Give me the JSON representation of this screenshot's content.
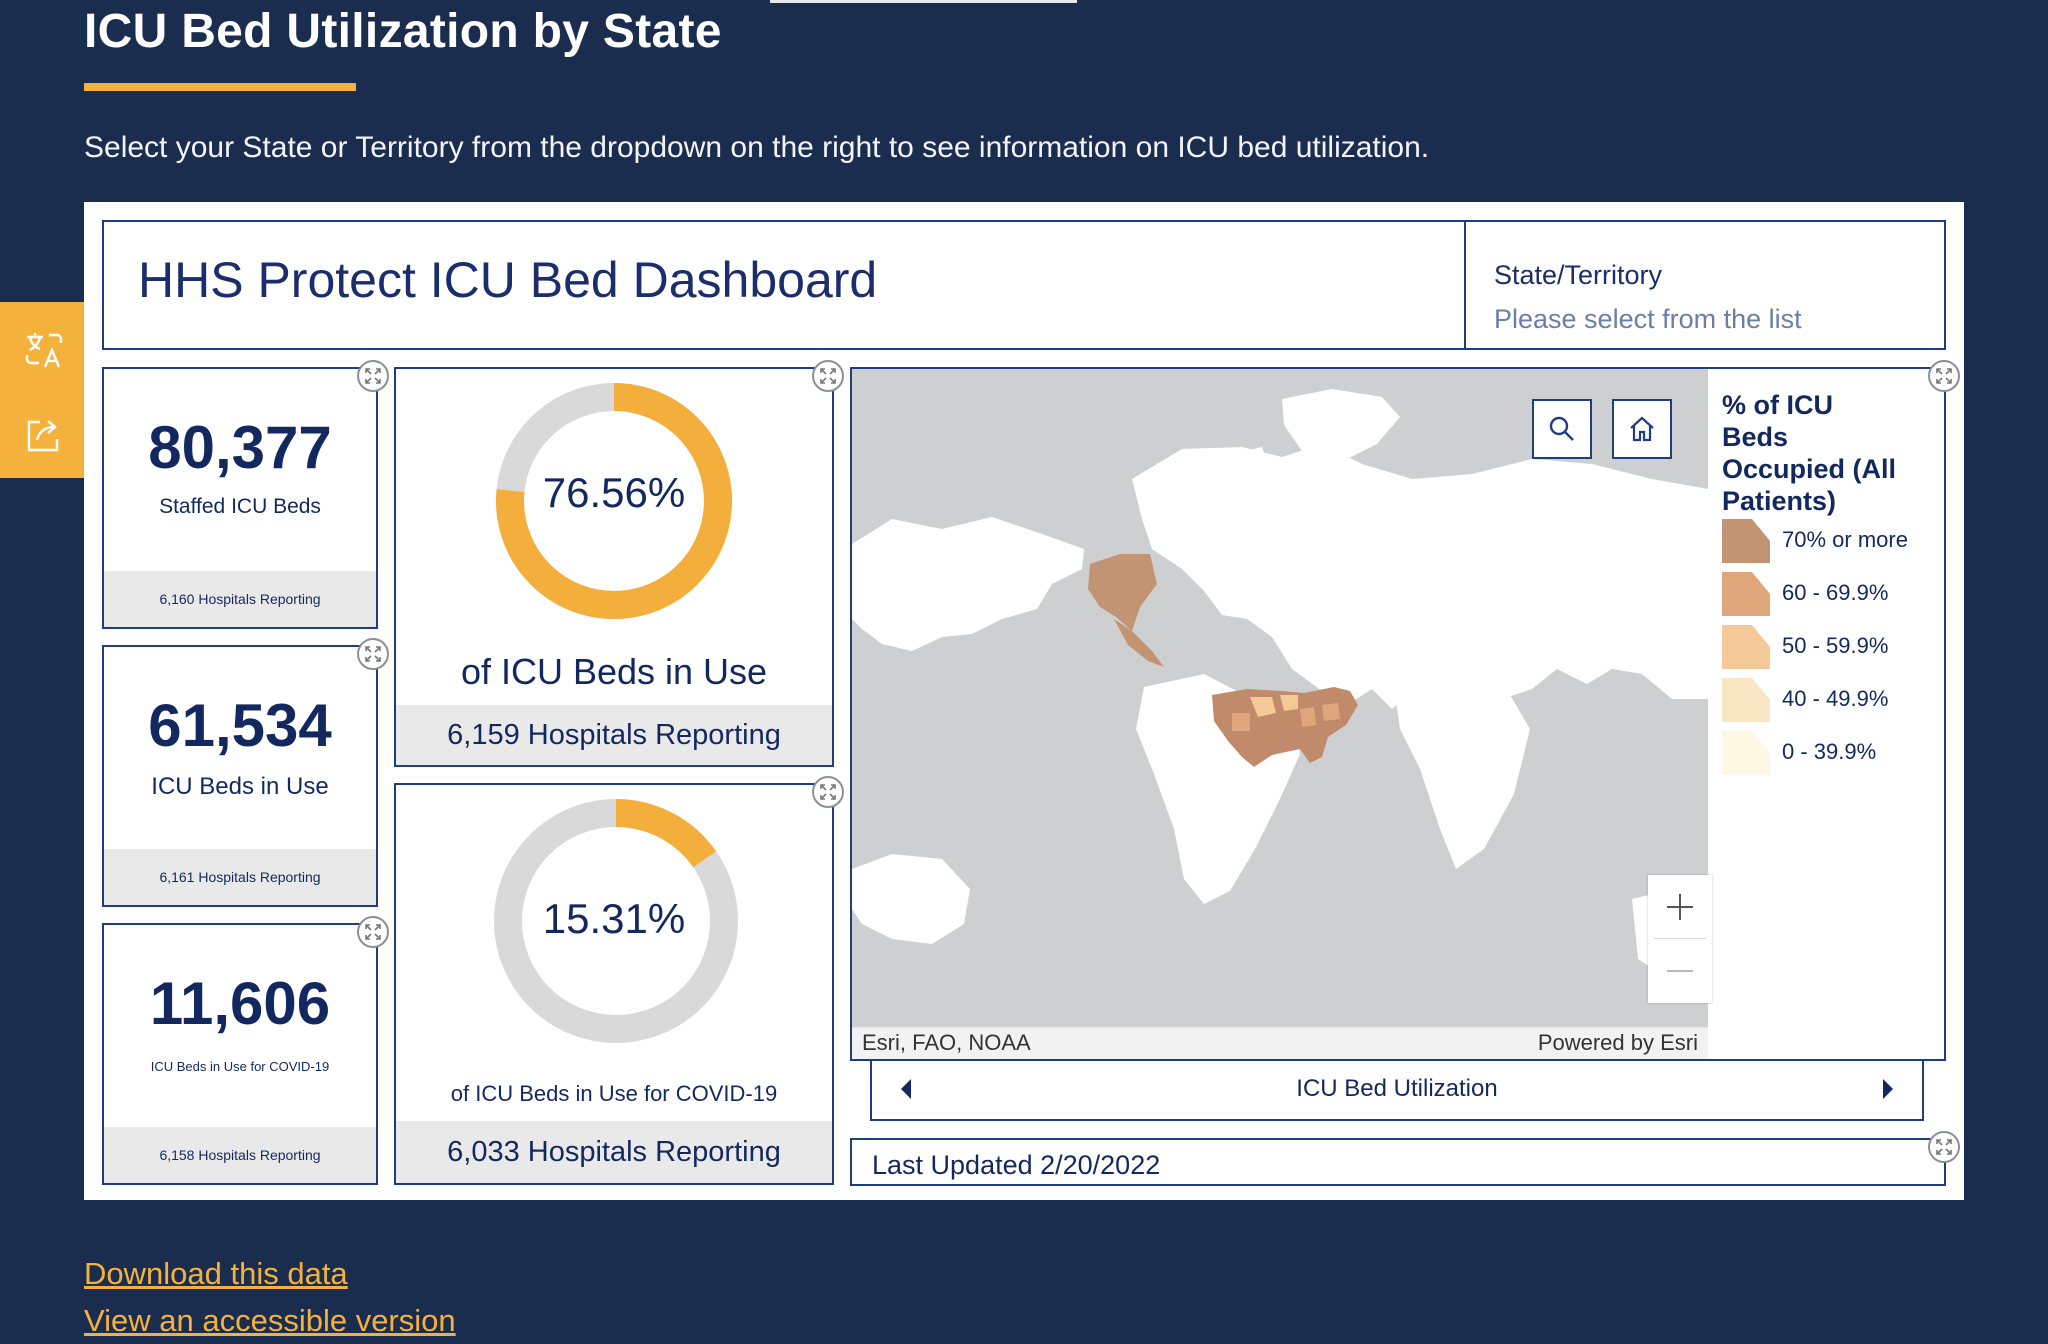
{
  "page": {
    "title": "ICU Bed Utilization by State",
    "intro": "Select your State or Territory from the dropdown on the right to see information on ICU bed utilization."
  },
  "dashboard": {
    "title": "HHS Protect ICU Bed Dashboard",
    "state_selector": {
      "label": "State/Territory",
      "placeholder": "Please select from the list"
    },
    "kpis": [
      {
        "value": "80,377",
        "label": "Staffed ICU Beds",
        "footer": "6,160 Hospitals Reporting"
      },
      {
        "value": "61,534",
        "label": "ICU Beds in Use",
        "footer": "6,161 Hospitals Reporting"
      },
      {
        "value": "11,606",
        "label": "ICU Beds in Use for COVID-19",
        "footer": "6,158 Hospitals Reporting"
      }
    ],
    "donuts": [
      {
        "percent_text": "76.56%",
        "fraction": 0.7656,
        "caption": "of ICU Beds in Use",
        "footer": "6,159 Hospitals Reporting",
        "color": "#f4ae3c"
      },
      {
        "percent_text": "15.31%",
        "fraction": 0.1531,
        "caption": "of ICU Beds in Use for COVID-19",
        "footer": "6,033 Hospitals Reporting",
        "color": "#f4ae3c"
      }
    ],
    "map": {
      "attribution_left": "Esri, FAO, NOAA",
      "attribution_right": "Powered by Esri",
      "tools": [
        "search-icon",
        "home-icon"
      ],
      "zoom": [
        "+",
        "−"
      ]
    },
    "legend": {
      "title": "% of ICU Beds Occupied (All Patients)",
      "items": [
        {
          "label": "70% or more",
          "color": "#c39473"
        },
        {
          "label": "60 - 69.9%",
          "color": "#dfa67c"
        },
        {
          "label": "50 - 59.9%",
          "color": "#f4c897"
        },
        {
          "label": "40 - 49.9%",
          "color": "#f8e5c2"
        },
        {
          "label": "0 - 39.9%",
          "color": "#fdf8e3"
        }
      ]
    },
    "carousel_label": "ICU Bed Utilization",
    "last_updated": "Last Updated 2/20/2022"
  },
  "links": {
    "download": "Download this data",
    "accessible": "View an accessible version"
  },
  "colors": {
    "navy": "#1b2d4f",
    "accent": "#f4b23d",
    "border": "#1f3c85",
    "donut_track": "#d9d9d9"
  }
}
